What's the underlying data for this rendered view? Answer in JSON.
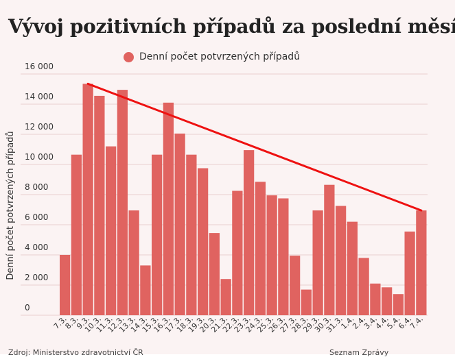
{
  "title": "Vývoj pozitivních případů za poslední měsíc",
  "footer": {
    "left": "Zdroj: Ministerstvo zdravotnictví ČR",
    "right": "Seznam Zprávy"
  },
  "colors": {
    "bar": "#e06360",
    "trend": "#ee1111",
    "background": "#fbf3f3",
    "grid": "#e8cfcf"
  },
  "chart_data": {
    "type": "bar",
    "title": "Vývoj pozitivních případů za poslední měsíc",
    "ylabel": "Denní počet potvrzených případů",
    "xlabel": "",
    "ylim": [
      0,
      16000
    ],
    "yticks": [
      0,
      2000,
      4000,
      6000,
      8000,
      10000,
      12000,
      14000,
      16000
    ],
    "ytick_labels": [
      "0",
      "2 000",
      "4 000",
      "6 000",
      "8 000",
      "10 000",
      "12 000",
      "14 000",
      "16 000"
    ],
    "grid": true,
    "legend_position": "top-center",
    "categories": [
      "7.3.",
      "8.3.",
      "9.3.",
      "10.3.",
      "11.3.",
      "12.3.",
      "13.3.",
      "14.3.",
      "15.3.",
      "16.3.",
      "17.3.",
      "18.3.",
      "19.3.",
      "20.3.",
      "21.3.",
      "22.3.",
      "23.3.",
      "24.3.",
      "25.3.",
      "26.3.",
      "27.3.",
      "28.3.",
      "29.3.",
      "30.3.",
      "31.3.",
      "1.4.",
      "2.4.",
      "3.4.",
      "4.4.",
      "5.4.",
      "6.4.",
      "7.4."
    ],
    "series": [
      {
        "name": "Denní počet potvrzených případů",
        "values": [
          4000,
          10650,
          15350,
          14550,
          11200,
          14950,
          6950,
          3300,
          10650,
          14100,
          12050,
          10650,
          9750,
          5450,
          2400,
          8250,
          10950,
          8850,
          7950,
          7750,
          3950,
          1700,
          6950,
          8650,
          7250,
          6200,
          3800,
          2100,
          1850,
          1400,
          5550,
          6950
        ]
      }
    ],
    "trendline": {
      "from": {
        "x": "9.3.",
        "y": 15350
      },
      "to": {
        "x": "7.4.",
        "y": 6950
      }
    }
  }
}
